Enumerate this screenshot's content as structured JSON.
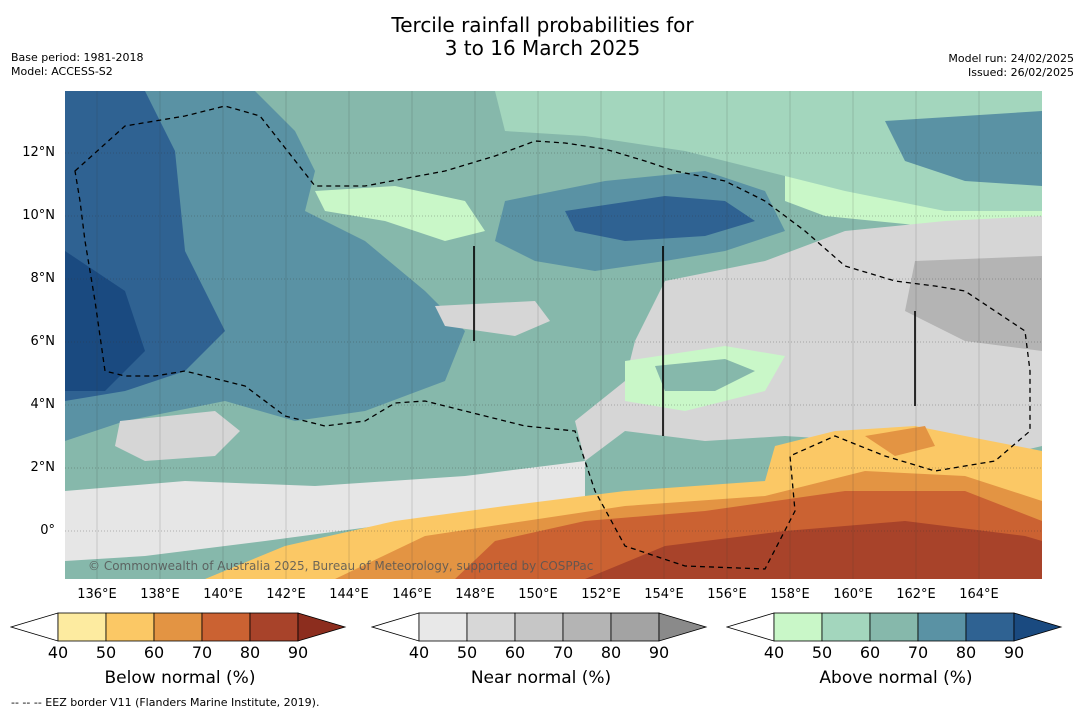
{
  "title_line1": "Tercile rainfall probabilities for",
  "title_line2": "3 to 16 March 2025",
  "base_period": "Base period: 1981-2018",
  "model": "Model: ACCESS-S2",
  "model_run": "Model run: 24/02/2025",
  "issued": "Issued: 26/02/2025",
  "copyright": "© Commonwealth of Australia 2025, Bureau of Meteorology, supported by COSPPac",
  "footer": "--  --  -- EEZ border V11 (Flanders Marine Institute, 2019).",
  "lat_labels": [
    "12°N",
    "10°N",
    "8°N",
    "6°N",
    "4°N",
    "2°N",
    "0°"
  ],
  "lon_labels": [
    "136°E",
    "138°E",
    "140°E",
    "142°E",
    "144°E",
    "146°E",
    "148°E",
    "150°E",
    "152°E",
    "154°E",
    "156°E",
    "158°E",
    "160°E",
    "162°E",
    "164°E"
  ],
  "colorbars": [
    {
      "title": "Below normal (%)",
      "ticks": [
        "40",
        "50",
        "60",
        "70",
        "80",
        "90"
      ],
      "colors": [
        "#ffffff",
        "#fdeba0",
        "#fbc865",
        "#e39443",
        "#cb6232",
        "#a8432a",
        "#8c2d1e"
      ]
    },
    {
      "title": "Near normal (%)",
      "ticks": [
        "40",
        "50",
        "60",
        "70",
        "80",
        "90"
      ],
      "colors": [
        "#ffffff",
        "#e8e8e8",
        "#d7d7d7",
        "#c6c6c6",
        "#b4b4b4",
        "#a3a3a3",
        "#8a8a8a"
      ]
    },
    {
      "title": "Above normal (%)",
      "ticks": [
        "40",
        "50",
        "60",
        "70",
        "80",
        "90"
      ],
      "colors": [
        "#ffffff",
        "#c9f7c8",
        "#a3d6bd",
        "#86b8ab",
        "#5a92a4",
        "#2f6292",
        "#1a4a80"
      ]
    }
  ],
  "colors": {
    "above_50": "#c9f7c8",
    "above_60": "#a3d6bd",
    "above_70": "#86b8ab",
    "above_80": "#5a92a4",
    "above_90": "#2f6292",
    "near_40": "#e6e6e6",
    "near_50": "#d6d6d6",
    "near_60": "#c4c4c4",
    "below_50": "#fbc865",
    "below_60": "#e39443",
    "below_70": "#cb6232",
    "below_80": "#a8432a"
  }
}
